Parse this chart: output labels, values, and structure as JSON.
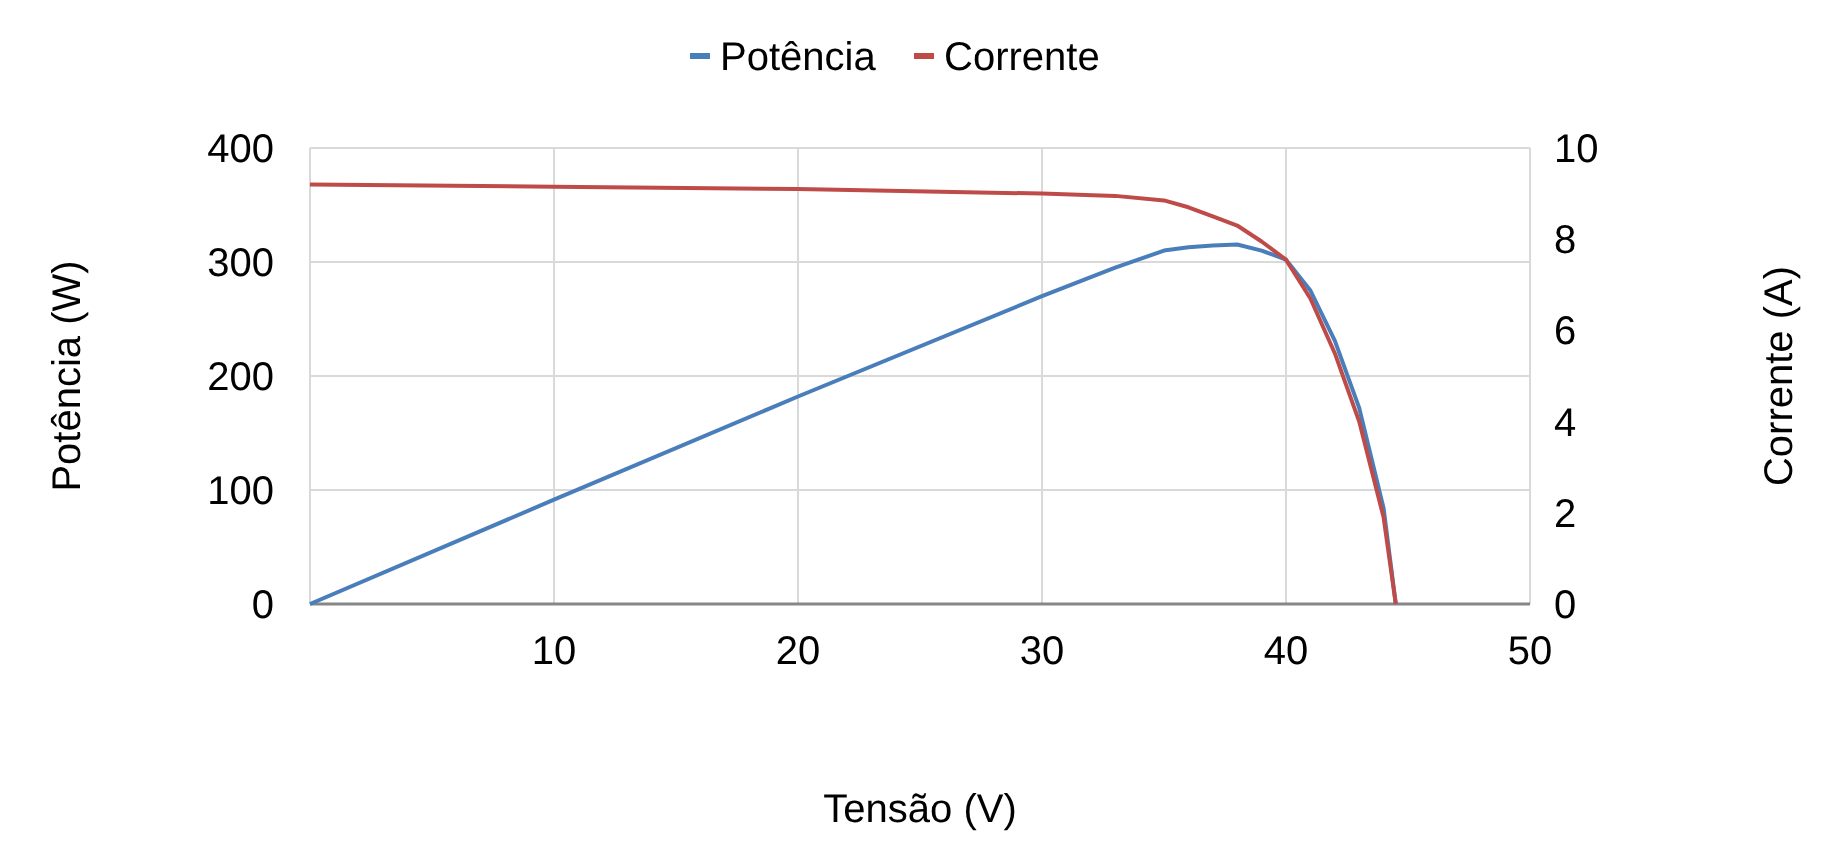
{
  "chart_data": {
    "type": "line",
    "xlabel": "Tensão (V)",
    "ylabel": "Potência (W)",
    "y2label": "Corrente (A)",
    "xlim": [
      0,
      50
    ],
    "xticks": [
      {
        "value": 0,
        "label": null
      },
      10,
      20,
      30,
      40,
      50
    ],
    "ylim": [
      0,
      400
    ],
    "yticks": [
      0,
      100,
      200,
      300,
      400
    ],
    "y2lim": [
      0,
      10
    ],
    "y2ticks": [
      0,
      2,
      4,
      6,
      8,
      10
    ],
    "grid": true,
    "legend": "top",
    "marker": "none",
    "line_style": "solid",
    "x": [
      0,
      10,
      20,
      30,
      33,
      35,
      36,
      37,
      38,
      39,
      40,
      41,
      42,
      43,
      44,
      44.5
    ],
    "series": [
      {
        "name": "Potência",
        "color": "#4a7ebb",
        "values": [
          0,
          91.5,
          182,
          270,
          295,
          310,
          313,
          314.5,
          315.4,
          310,
          302,
          275,
          231,
          172,
          84,
          0
        ]
      },
      {
        "name": "Corrente",
        "color": "#be4b48",
        "axis": "y2",
        "values": [
          9.2,
          9.15,
          9.1,
          9.0,
          8.95,
          8.85,
          8.7,
          8.5,
          8.3,
          7.95,
          7.55,
          6.7,
          5.5,
          4.0,
          1.9,
          0
        ]
      }
    ]
  }
}
